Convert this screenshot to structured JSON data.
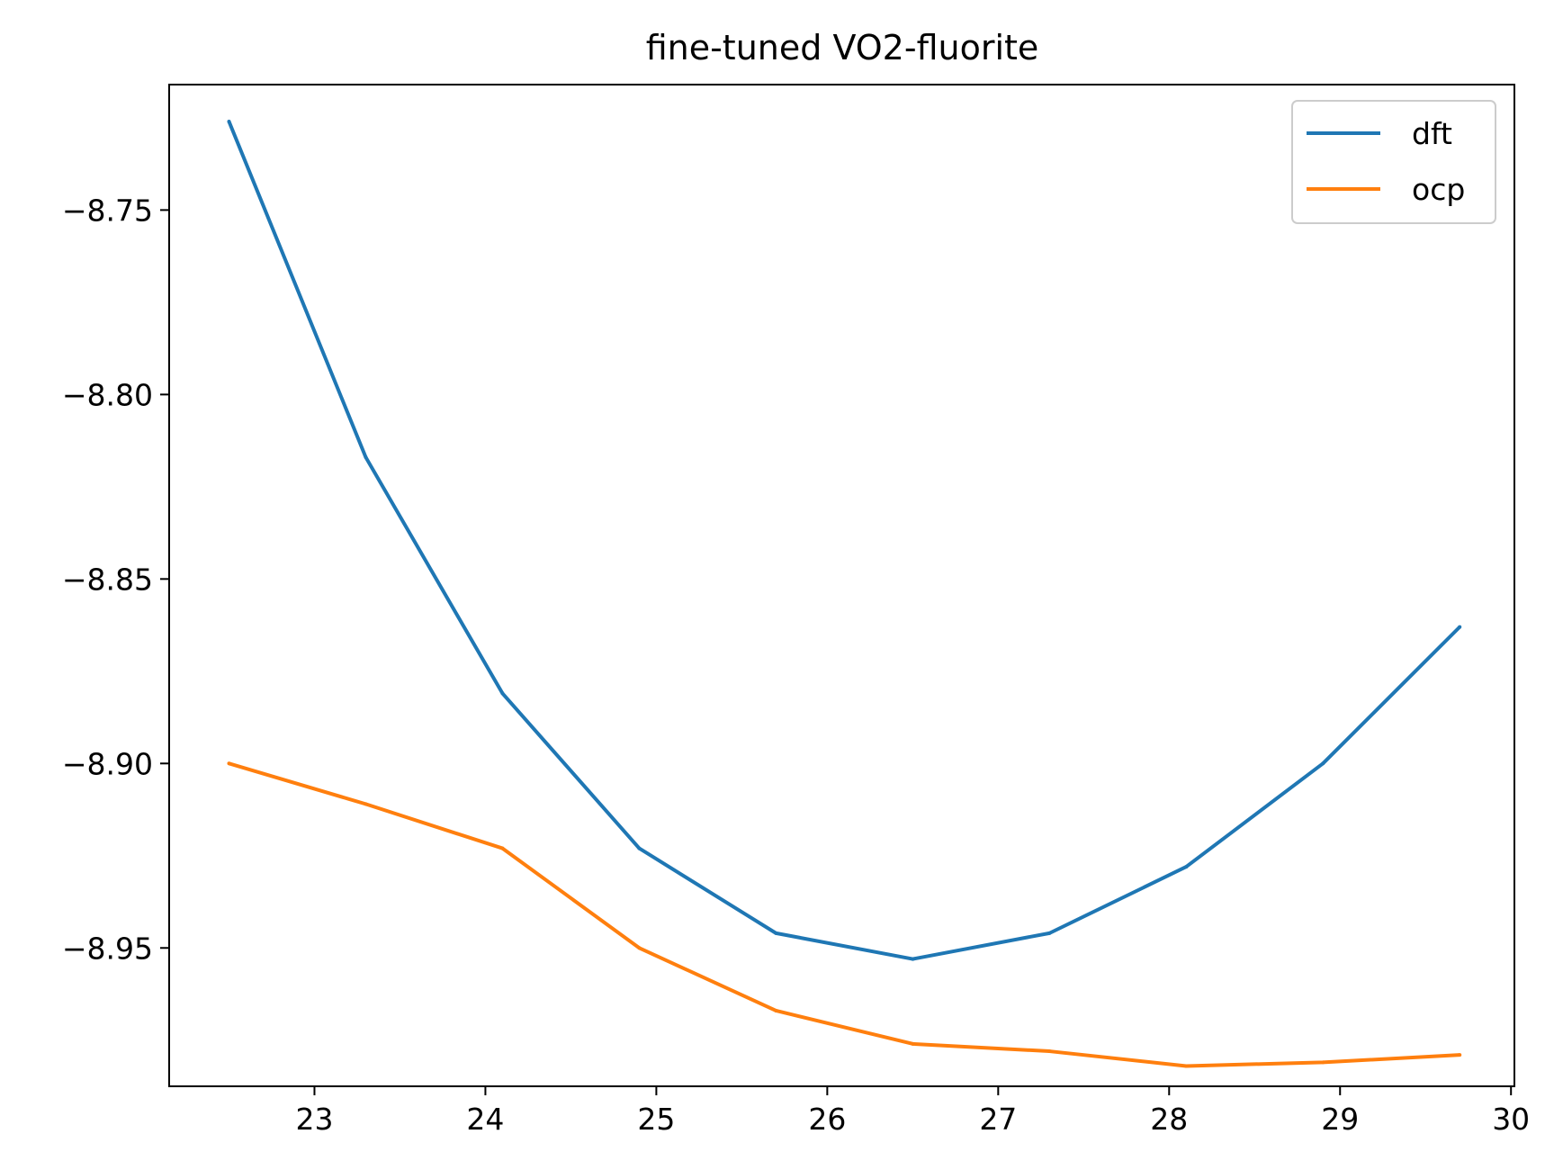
{
  "chart_data": {
    "type": "line",
    "title": "fine-tuned VO2-fluorite",
    "xlabel": "",
    "ylabel": "",
    "xlim": [
      22.15,
      30.02
    ],
    "ylim": [
      -8.9875,
      -8.716
    ],
    "xticks": [
      23,
      24,
      25,
      26,
      27,
      28,
      29,
      30
    ],
    "yticks": [
      -8.75,
      -8.8,
      -8.85,
      -8.9,
      -8.95
    ],
    "ytick_labels": [
      "−8.75",
      "−8.80",
      "−8.85",
      "−8.90",
      "−8.95"
    ],
    "grid": false,
    "legend_position": "top-right",
    "x": [
      22.5,
      23.3,
      24.1,
      24.9,
      25.7,
      26.5,
      27.3,
      28.1,
      28.9,
      29.7
    ],
    "series": [
      {
        "name": "dft",
        "color": "#1f77b4",
        "values": [
          -8.726,
          -8.817,
          -8.881,
          -8.923,
          -8.946,
          -8.953,
          -8.946,
          -8.928,
          -8.9,
          -8.863
        ]
      },
      {
        "name": "ocp",
        "color": "#ff7f0e",
        "values": [
          -8.9,
          -8.911,
          -8.923,
          -8.95,
          -8.967,
          -8.976,
          -8.978,
          -8.982,
          -8.981,
          -8.979
        ]
      }
    ]
  }
}
